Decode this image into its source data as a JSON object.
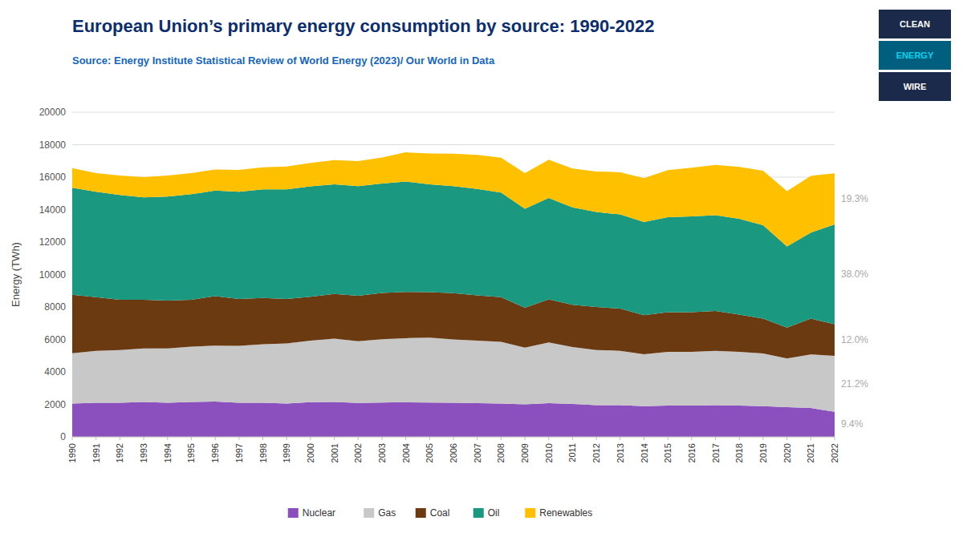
{
  "chart_data": {
    "type": "area",
    "stacked": true,
    "title": "European Union’s primary energy consumption by source: 1990-2022",
    "subtitle": "Source: Energy Institute Statistical Review of World Energy (2023)/ Our World in Data",
    "y_label": "Energy (TWh)",
    "x": [
      1990,
      1991,
      1992,
      1993,
      1994,
      1995,
      1996,
      1997,
      1998,
      1999,
      2000,
      2001,
      2002,
      2003,
      2004,
      2005,
      2006,
      2007,
      2008,
      2009,
      2010,
      2011,
      2012,
      2013,
      2014,
      2015,
      2016,
      2017,
      2018,
      2019,
      2020,
      2021,
      2022
    ],
    "series": [
      {
        "name": "Nuclear",
        "color": "#8B4FBE",
        "values": [
          2050,
          2100,
          2100,
          2150,
          2100,
          2150,
          2170,
          2100,
          2100,
          2050,
          2130,
          2150,
          2090,
          2110,
          2130,
          2110,
          2100,
          2070,
          2050,
          2000,
          2070,
          2030,
          1950,
          1950,
          1890,
          1930,
          1930,
          1950,
          1930,
          1890,
          1830,
          1780,
          1540
        ]
      },
      {
        "name": "Gas",
        "color": "#C8C8C8",
        "values": [
          3100,
          3200,
          3250,
          3300,
          3350,
          3400,
          3450,
          3500,
          3600,
          3700,
          3800,
          3900,
          3800,
          3900,
          3950,
          4000,
          3900,
          3850,
          3800,
          3500,
          3750,
          3500,
          3400,
          3350,
          3200,
          3300,
          3300,
          3350,
          3300,
          3250,
          3000,
          3300,
          3450
        ]
      },
      {
        "name": "Coal",
        "color": "#6B3A10",
        "values": [
          3600,
          3300,
          3100,
          3000,
          2950,
          2900,
          3050,
          2900,
          2850,
          2750,
          2700,
          2750,
          2800,
          2850,
          2850,
          2800,
          2850,
          2800,
          2750,
          2450,
          2650,
          2600,
          2650,
          2600,
          2400,
          2450,
          2450,
          2450,
          2300,
          2150,
          1900,
          2200,
          1950
        ]
      },
      {
        "name": "Oil",
        "color": "#1A9980",
        "values": [
          6600,
          6500,
          6450,
          6300,
          6400,
          6500,
          6500,
          6600,
          6700,
          6750,
          6800,
          6750,
          6750,
          6750,
          6800,
          6650,
          6600,
          6550,
          6450,
          6100,
          6250,
          6000,
          5850,
          5800,
          5750,
          5850,
          5900,
          5900,
          5900,
          5750,
          5000,
          5300,
          6150
        ]
      },
      {
        "name": "Renewables",
        "color": "#FFC000",
        "values": [
          1200,
          1150,
          1200,
          1250,
          1300,
          1300,
          1300,
          1350,
          1350,
          1400,
          1450,
          1500,
          1550,
          1600,
          1800,
          1900,
          2000,
          2100,
          2150,
          2200,
          2350,
          2400,
          2500,
          2600,
          2700,
          2900,
          3000,
          3100,
          3200,
          3350,
          3400,
          3500,
          3150
        ]
      }
    ],
    "annotations": [
      "9.4%",
      "21.2%",
      "12.0%",
      "38.0%",
      "19.3%"
    ],
    "xlim": [
      1990,
      2022
    ],
    "xticks": [
      1990,
      1991,
      1992,
      1993,
      1994,
      1995,
      1996,
      1997,
      1998,
      1999,
      2000,
      2001,
      2002,
      2003,
      2004,
      2005,
      2006,
      2007,
      2008,
      2009,
      2010,
      2011,
      2012,
      2013,
      2014,
      2015,
      2016,
      2017,
      2018,
      2019,
      2020,
      2021,
      2022
    ],
    "ylim": [
      0,
      20000
    ],
    "yticks": [
      0,
      2000,
      4000,
      6000,
      8000,
      10000,
      12000,
      14000,
      16000,
      18000,
      20000
    ],
    "grid": true,
    "legend": "bottom"
  },
  "logo": [
    "CLEAN",
    "ENERGY",
    "WIRE"
  ]
}
